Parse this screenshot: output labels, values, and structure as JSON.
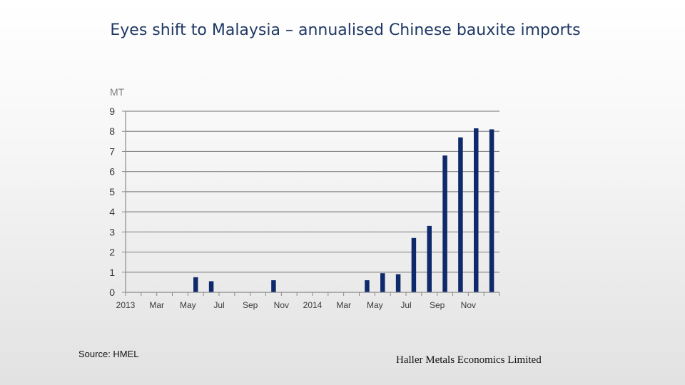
{
  "slide": {
    "title": "Eyes shift to Malaysia – annualised Chinese bauxite imports",
    "source": "Source: HMEL",
    "footer": "Haller Metals Economics Limited"
  },
  "chart_data": {
    "type": "bar",
    "title": "",
    "xlabel": "",
    "ylabel": "MT",
    "ylim": [
      0,
      9
    ],
    "yticks": [
      0,
      1,
      2,
      3,
      4,
      5,
      6,
      7,
      8,
      9
    ],
    "grid": true,
    "legend": "none",
    "bar_color": "#0f2a6b",
    "categories": [
      "Jan 2013",
      "Feb 2013",
      "Mar 2013",
      "Apr 2013",
      "May 2013",
      "Jun 2013",
      "Jul 2013",
      "Aug 2013",
      "Sep 2013",
      "Oct 2013",
      "Nov 2013",
      "Dec 2013",
      "Jan 2014",
      "Feb 2014",
      "Mar 2014",
      "Apr 2014",
      "May 2014",
      "Jun 2014",
      "Jul 2014",
      "Aug 2014",
      "Sep 2014",
      "Oct 2014",
      "Nov 2014",
      "Dec 2014"
    ],
    "tick_labels": [
      "2013",
      "",
      "Mar",
      "",
      "May",
      "",
      "Jul",
      "",
      "Sep",
      "",
      "Nov",
      "",
      "2014",
      "",
      "Mar",
      "",
      "May",
      "",
      "Jul",
      "",
      "Sep",
      "",
      "Nov",
      ""
    ],
    "values": [
      0,
      0,
      0,
      0,
      0.75,
      0.55,
      0,
      0,
      0,
      0.6,
      0,
      0,
      0,
      0,
      0,
      0.6,
      0.95,
      0.9,
      2.7,
      3.3,
      6.8,
      7.7,
      8.15,
      8.1
    ]
  }
}
